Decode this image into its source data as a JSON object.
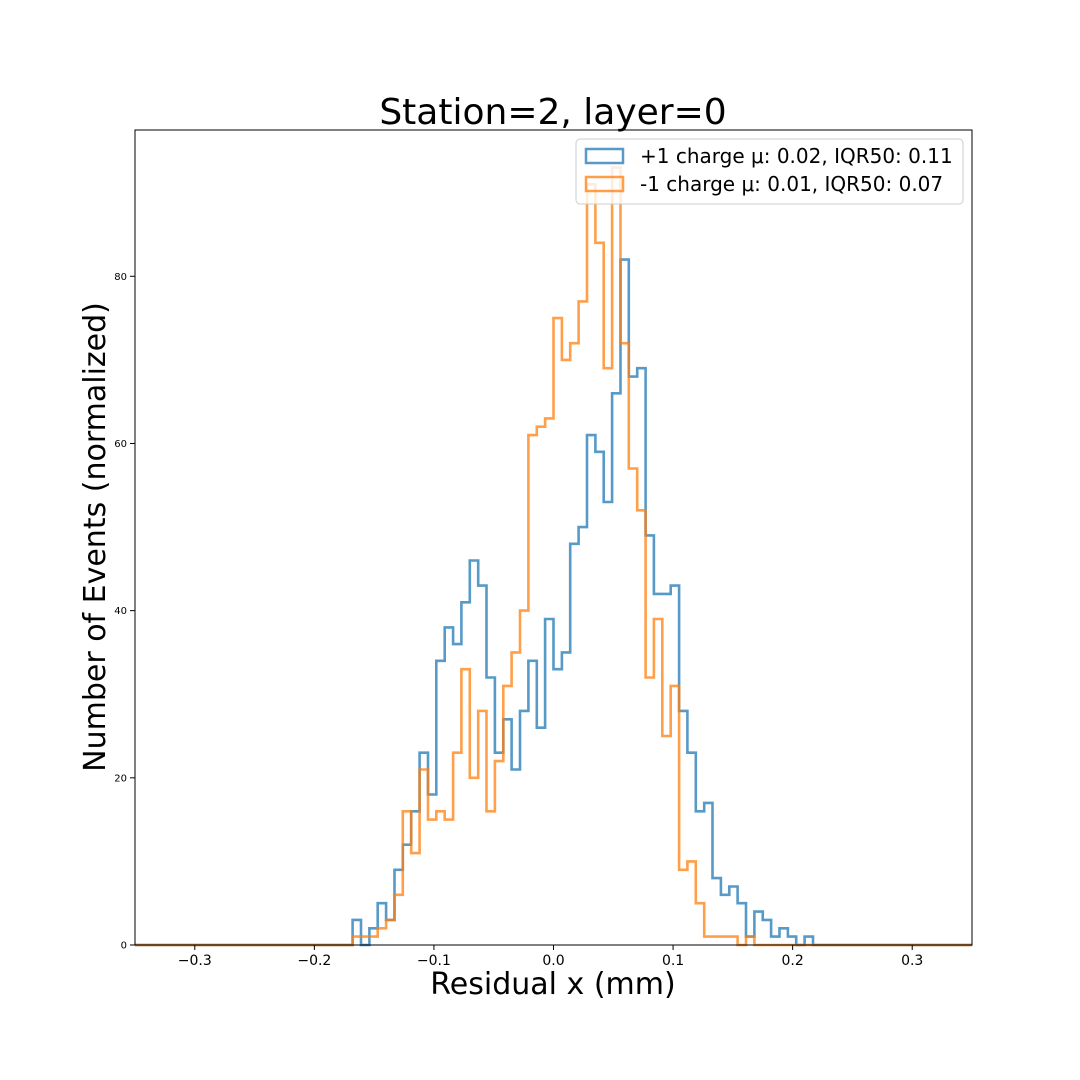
{
  "chart_data": {
    "type": "histogram",
    "title": "Station=2, layer=0",
    "xlabel": "Residual x (mm)",
    "ylabel": "Number of Events (normalized)",
    "xlim": [
      -0.35,
      0.35
    ],
    "ylim": [
      0,
      97.5
    ],
    "xticks": [
      -0.3,
      -0.2,
      -0.1,
      0.0,
      0.1,
      0.2,
      0.3
    ],
    "xtick_labels": [
      "−0.3",
      "−0.2",
      "−0.1",
      "0.0",
      "0.1",
      "0.2",
      "0.3"
    ],
    "yticks": [
      0,
      20,
      40,
      60,
      80
    ],
    "ytick_labels": [
      "0",
      "20",
      "40",
      "60",
      "80"
    ],
    "grid": false,
    "legend_position": "top-right",
    "bin_width": 0.007,
    "series": [
      {
        "name": "+1 charge μ: 0.02, IQR50: 0.11",
        "color": "#1f77b4",
        "bins": [
          [
            -0.168,
            3
          ],
          [
            -0.161,
            0
          ],
          [
            -0.154,
            2
          ],
          [
            -0.147,
            5
          ],
          [
            -0.14,
            3
          ],
          [
            -0.133,
            9
          ],
          [
            -0.126,
            12
          ],
          [
            -0.119,
            16
          ],
          [
            -0.112,
            23
          ],
          [
            -0.105,
            18
          ],
          [
            -0.098,
            34
          ],
          [
            -0.091,
            38
          ],
          [
            -0.084,
            36
          ],
          [
            -0.077,
            41
          ],
          [
            -0.07,
            46
          ],
          [
            -0.063,
            43
          ],
          [
            -0.056,
            32
          ],
          [
            -0.049,
            23
          ],
          [
            -0.042,
            27
          ],
          [
            -0.035,
            21
          ],
          [
            -0.028,
            28
          ],
          [
            -0.021,
            34
          ],
          [
            -0.014,
            26
          ],
          [
            -0.007,
            39
          ],
          [
            0.0,
            33
          ],
          [
            0.007,
            35
          ],
          [
            0.014,
            48
          ],
          [
            0.021,
            50
          ],
          [
            0.028,
            61
          ],
          [
            0.035,
            59
          ],
          [
            0.042,
            53
          ],
          [
            0.049,
            66
          ],
          [
            0.056,
            82
          ],
          [
            0.063,
            68
          ],
          [
            0.07,
            69
          ],
          [
            0.077,
            49
          ],
          [
            0.084,
            42
          ],
          [
            0.091,
            42
          ],
          [
            0.098,
            43
          ],
          [
            0.105,
            28
          ],
          [
            0.112,
            23
          ],
          [
            0.119,
            16
          ],
          [
            0.126,
            17
          ],
          [
            0.133,
            8
          ],
          [
            0.14,
            6
          ],
          [
            0.147,
            7
          ],
          [
            0.154,
            5
          ],
          [
            0.161,
            1
          ],
          [
            0.168,
            4
          ],
          [
            0.175,
            3
          ],
          [
            0.182,
            1
          ],
          [
            0.189,
            2
          ],
          [
            0.196,
            1
          ],
          [
            0.203,
            0
          ],
          [
            0.21,
            1
          ]
        ]
      },
      {
        "name": "-1 charge μ: 0.01, IQR50: 0.07",
        "color": "#ff7f0e",
        "bins": [
          [
            -0.168,
            1
          ],
          [
            -0.161,
            1
          ],
          [
            -0.154,
            1
          ],
          [
            -0.147,
            2
          ],
          [
            -0.14,
            3
          ],
          [
            -0.133,
            6
          ],
          [
            -0.126,
            16
          ],
          [
            -0.119,
            11
          ],
          [
            -0.112,
            21
          ],
          [
            -0.105,
            15
          ],
          [
            -0.098,
            16
          ],
          [
            -0.091,
            15
          ],
          [
            -0.084,
            23
          ],
          [
            -0.077,
            33
          ],
          [
            -0.07,
            20
          ],
          [
            -0.063,
            28
          ],
          [
            -0.056,
            16
          ],
          [
            -0.049,
            22
          ],
          [
            -0.042,
            31
          ],
          [
            -0.035,
            35
          ],
          [
            -0.028,
            40
          ],
          [
            -0.021,
            61
          ],
          [
            -0.014,
            62
          ],
          [
            -0.007,
            63
          ],
          [
            0.0,
            75
          ],
          [
            0.007,
            70
          ],
          [
            0.014,
            72
          ],
          [
            0.021,
            77
          ],
          [
            0.028,
            91
          ],
          [
            0.035,
            84
          ],
          [
            0.042,
            69
          ],
          [
            0.049,
            93
          ],
          [
            0.056,
            72
          ],
          [
            0.063,
            57
          ],
          [
            0.07,
            52
          ],
          [
            0.077,
            32
          ],
          [
            0.084,
            39
          ],
          [
            0.091,
            25
          ],
          [
            0.098,
            31
          ],
          [
            0.105,
            9
          ],
          [
            0.112,
            10
          ],
          [
            0.119,
            5
          ],
          [
            0.126,
            1
          ],
          [
            0.133,
            1
          ],
          [
            0.14,
            1
          ],
          [
            0.147,
            1
          ],
          [
            0.154,
            0
          ],
          [
            0.161,
            1
          ],
          [
            0.168,
            0
          ]
        ]
      }
    ]
  }
}
